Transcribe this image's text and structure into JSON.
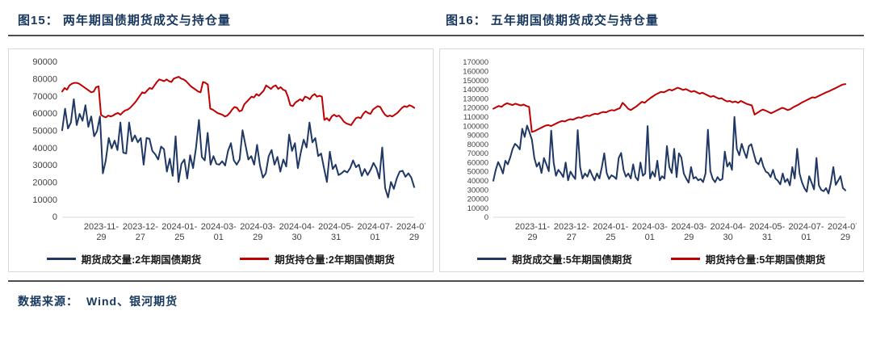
{
  "colors": {
    "volume_line": "#1f3864",
    "open_interest_line": "#c00000",
    "title_text": "#17375e",
    "axis_text": "#404040",
    "panel_border": "#d9d9d9",
    "divider": "#4d4d4d"
  },
  "source": {
    "label": "数据来源：",
    "value": "Wind、银河期货"
  },
  "chart_data": [
    {
      "type": "line",
      "title": "图15： 两年期国债期货成交与持仓量",
      "xlabel": "",
      "ylabel": "",
      "ylim": [
        0,
        90000
      ],
      "ystep": 10000,
      "grid": false,
      "legend_position": "bottom",
      "x_tick_labels": [
        "2023-11-29",
        "2023-12-27",
        "2024-01-25",
        "2024-03-01",
        "2024-03-29",
        "2024-04-30",
        "2024-05-31",
        "2024-07-01",
        "2024-07-29"
      ],
      "series": [
        {
          "name": "期货成交量:2年期国债期货",
          "color": "#1f3864",
          "values": [
            50500,
            63000,
            51500,
            55000,
            68500,
            53500,
            60000,
            56000,
            65000,
            52500,
            58500,
            47000,
            50000,
            58500,
            25500,
            33000,
            46000,
            40000,
            44500,
            39000,
            55000,
            37500,
            37000,
            55000,
            44000,
            47500,
            43500,
            46000,
            30500,
            46000,
            45500,
            38500,
            36500,
            33500,
            41000,
            39500,
            26500,
            34000,
            24000,
            47000,
            20500,
            31000,
            33500,
            22500,
            36000,
            28500,
            40500,
            56500,
            35000,
            33000,
            49000,
            30500,
            35500,
            31000,
            30500,
            32500,
            30000,
            38500,
            43000,
            33000,
            30500,
            33500,
            50500,
            42000,
            33500,
            35500,
            30500,
            42000,
            30000,
            23000,
            25500,
            35500,
            39000,
            30500,
            35000,
            26500,
            33500,
            29500,
            48000,
            38500,
            43000,
            28500,
            37500,
            45000,
            40500,
            55000,
            43500,
            46000,
            35500,
            37000,
            28500,
            20500,
            38000,
            28000,
            30500,
            24500,
            25500,
            27000,
            26000,
            28500,
            33000,
            29000,
            30500,
            24000,
            28000,
            24500,
            27500,
            31500,
            28500,
            22500,
            40500,
            17000,
            11500,
            20500,
            16500,
            22500,
            26500,
            27000,
            23500,
            25500,
            23000,
            17500
          ]
        },
        {
          "name": "期货持仓量:2年期国债期货",
          "color": "#c00000",
          "values": [
            73000,
            75000,
            74000,
            76500,
            77500,
            78000,
            78000,
            77500,
            76500,
            75500,
            74500,
            73500,
            72500,
            73000,
            75500,
            76000,
            59500,
            58500,
            58000,
            59000,
            58500,
            59000,
            60000,
            60500,
            59500,
            61000,
            62000,
            62500,
            63500,
            65000,
            66500,
            68500,
            70500,
            72500,
            72000,
            73500,
            75000,
            74500,
            76500,
            78500,
            80000,
            79500,
            79000,
            80000,
            79000,
            78500,
            80500,
            81000,
            81500,
            80500,
            80000,
            79000,
            77500,
            76000,
            75000,
            74000,
            73000,
            72500,
            78500,
            78000,
            77000,
            63000,
            62500,
            61500,
            60500,
            60000,
            59500,
            58500,
            59000,
            60500,
            62500,
            64000,
            63500,
            61500,
            62000,
            65500,
            67000,
            68500,
            70000,
            69500,
            71500,
            70500,
            72000,
            73500,
            76500,
            75500,
            74500,
            76000,
            76500,
            74500,
            75500,
            74000,
            73500,
            70000,
            65000,
            64500,
            66500,
            67500,
            68500,
            67500,
            70000,
            69500,
            68500,
            70500,
            71500,
            70000,
            70500,
            70000,
            56500,
            57500,
            56000,
            58500,
            59500,
            58500,
            59000,
            57500,
            55500,
            54500,
            54000,
            53500,
            55500,
            57500,
            58000,
            57500,
            60000,
            61500,
            60500,
            60000,
            62500,
            63500,
            64500,
            64000,
            61500,
            59500,
            58500,
            59000,
            58500,
            59500,
            60500,
            62000,
            63500,
            64500,
            64000,
            65000,
            64500,
            63500
          ]
        }
      ]
    },
    {
      "type": "line",
      "title": "图16： 五年期国债期货成交与持仓量",
      "xlabel": "",
      "ylabel": "",
      "ylim": [
        0,
        170000
      ],
      "ystep": 10000,
      "grid": false,
      "legend_position": "bottom",
      "x_tick_labels": [
        "2023-11-29",
        "2023-12-27",
        "2024-01-25",
        "2024-03-01",
        "2024-03-29",
        "2024-04-30",
        "2024-05-31",
        "2024-07-01",
        "2024-07-29"
      ],
      "series": [
        {
          "name": "期货成交量:5年期国债期货",
          "color": "#1f3864",
          "values": [
            40000,
            52000,
            60500,
            55000,
            48000,
            62000,
            58000,
            65500,
            75000,
            80500,
            78000,
            74500,
            97000,
            88000,
            100500,
            93000,
            85000,
            65000,
            55500,
            60000,
            48500,
            65000,
            58000,
            50500,
            95000,
            60000,
            45500,
            52000,
            48500,
            44000,
            60000,
            40500,
            50000,
            45500,
            42000,
            95500,
            55000,
            42500,
            48000,
            44500,
            52000,
            46000,
            40500,
            48000,
            42500,
            55000,
            70000,
            48500,
            42000,
            46000,
            44500,
            42000,
            65000,
            70500,
            52000,
            44500,
            48000,
            42500,
            58000,
            44000,
            40500,
            60000,
            45500,
            48000,
            100000,
            42500,
            50000,
            44500,
            62000,
            40500,
            45000,
            42500,
            78000,
            55000,
            48500,
            75000,
            44000,
            70000,
            65500,
            48000,
            42500,
            38000,
            55000,
            42500,
            44000,
            40500,
            42000,
            38500,
            48000,
            96000,
            50500,
            42000,
            38500,
            44000,
            40500,
            42000,
            72000,
            55500,
            60000,
            52000,
            110000,
            75000,
            68000,
            80500,
            72000,
            65000,
            78000,
            80000,
            70000,
            60500,
            58000,
            65000,
            55500,
            50000,
            48500,
            44000,
            52000,
            42500,
            40000,
            36000,
            48000,
            38500,
            42000,
            35000,
            55000,
            42500,
            75000,
            48000,
            38500,
            32000,
            28000,
            45000,
            38000,
            30500,
            65000,
            35000,
            30000,
            28500,
            32000,
            26000,
            38000,
            55000,
            35500,
            40000,
            45000,
            32000,
            29500
          ]
        },
        {
          "name": "期货持仓量:5年期国债期货",
          "color": "#c00000",
          "values": [
            119000,
            120500,
            122000,
            121000,
            123500,
            125000,
            124000,
            123000,
            124500,
            123500,
            122500,
            123500,
            122000,
            121000,
            93500,
            94500,
            96000,
            97500,
            99000,
            100500,
            101000,
            100000,
            101500,
            103000,
            104500,
            105500,
            105000,
            106500,
            107500,
            107000,
            108500,
            109500,
            109000,
            110500,
            111500,
            111000,
            112500,
            113500,
            113000,
            114500,
            115500,
            115000,
            116500,
            117500,
            117000,
            118500,
            119500,
            125500,
            122500,
            119000,
            117500,
            119500,
            121500,
            124000,
            126500,
            125500,
            128000,
            130500,
            132500,
            134500,
            136000,
            137500,
            137000,
            138500,
            140000,
            139000,
            140500,
            142000,
            141000,
            139500,
            140500,
            139000,
            137500,
            138500,
            137000,
            135500,
            136500,
            135000,
            133500,
            132000,
            133000,
            131500,
            130000,
            130500,
            128500,
            127000,
            127500,
            126000,
            127000,
            125500,
            127500,
            126000,
            124500,
            123500,
            122500,
            112500,
            114500,
            116500,
            118000,
            117000,
            115500,
            114000,
            115500,
            117000,
            118500,
            120000,
            119000,
            117500,
            118500,
            120500,
            122000,
            123500,
            125500,
            127000,
            128500,
            130000,
            131500,
            131000,
            132500,
            134000,
            135500,
            137000,
            138000,
            139500,
            141000,
            142500,
            144000,
            145500,
            146000
          ]
        }
      ]
    }
  ]
}
